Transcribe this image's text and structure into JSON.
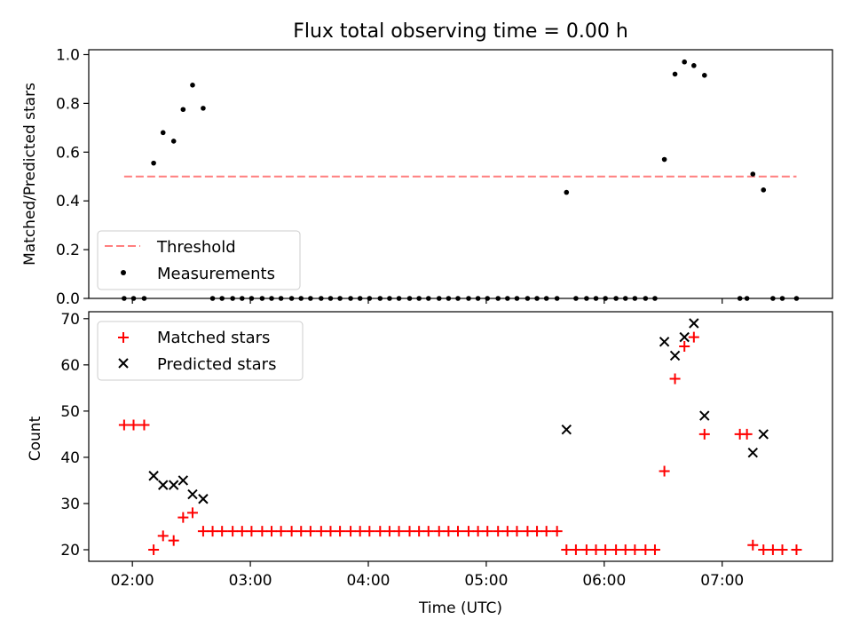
{
  "chart_data": {
    "title": "Flux total observing time = 0.00 h",
    "xlabel": "Time (UTC)",
    "x_tick_labels": [
      "02:00",
      "03:00",
      "04:00",
      "05:00",
      "06:00",
      "07:00"
    ],
    "x_tick_hours": [
      2,
      3,
      4,
      5,
      6,
      7
    ],
    "xlim": [
      1.63,
      7.935
    ],
    "colors": {
      "threshold": "#ff7f7f",
      "measurements": "#000000",
      "matched": "#ff0000",
      "predicted": "#000000"
    },
    "panels": [
      {
        "type": "scatter",
        "ylabel": "Matched/Predicted stars",
        "ylim": [
          0,
          1.02
        ],
        "y_tick_values": [
          0.0,
          0.2,
          0.4,
          0.6,
          0.8,
          1.0
        ],
        "y_tick_labels": [
          "0.0",
          "0.2",
          "0.4",
          "0.6",
          "0.8",
          "1.0"
        ],
        "legend": {
          "position": "lower left",
          "entries": [
            {
              "label": "Threshold"
            },
            {
              "label": "Measurements"
            }
          ]
        },
        "threshold": {
          "name": "Threshold",
          "value": 0.5,
          "x_range": [
            1.93,
            7.63
          ]
        },
        "measurements": {
          "name": "Measurements",
          "x": [
            1.93,
            2.01,
            2.1,
            2.18,
            2.26,
            2.35,
            2.43,
            2.51,
            2.6,
            2.68,
            2.76,
            2.85,
            2.93,
            3.01,
            3.1,
            3.18,
            3.26,
            3.35,
            3.43,
            3.51,
            3.6,
            3.68,
            3.76,
            3.85,
            3.93,
            4.01,
            4.1,
            4.18,
            4.26,
            4.35,
            4.43,
            4.51,
            4.6,
            4.68,
            4.76,
            4.85,
            4.93,
            5.01,
            5.1,
            5.18,
            5.26,
            5.35,
            5.43,
            5.51,
            5.6,
            5.68,
            5.76,
            5.85,
            5.93,
            6.01,
            6.1,
            6.18,
            6.26,
            6.35,
            6.43,
            6.51,
            6.6,
            6.68,
            6.76,
            6.85,
            7.15,
            7.21,
            7.26,
            7.35,
            7.43,
            7.51,
            7.63
          ],
          "y": [
            0,
            0,
            0,
            0.555,
            0.68,
            0.645,
            0.775,
            0.875,
            0.78,
            0,
            0,
            0,
            0,
            0,
            0,
            0,
            0,
            0,
            0,
            0,
            0,
            0,
            0,
            0,
            0,
            0,
            0,
            0,
            0,
            0,
            0,
            0,
            0,
            0,
            0,
            0,
            0,
            0,
            0,
            0,
            0,
            0,
            0,
            0,
            0,
            0.435,
            0,
            0,
            0,
            0,
            0,
            0,
            0,
            0,
            0,
            0.57,
            0.92,
            0.97,
            0.955,
            0.915,
            0,
            0,
            0.51,
            0.445,
            0,
            0,
            0
          ]
        }
      },
      {
        "type": "scatter",
        "ylabel": "Count",
        "ylim": [
          17.5,
          71.5
        ],
        "y_tick_values": [
          20,
          30,
          40,
          50,
          60,
          70
        ],
        "y_tick_labels": [
          "20",
          "30",
          "40",
          "50",
          "60",
          "70"
        ],
        "legend": {
          "position": "upper left",
          "entries": [
            {
              "label": "Matched stars"
            },
            {
              "label": "Predicted stars"
            }
          ]
        },
        "series": [
          {
            "name": "Matched stars",
            "marker": "+",
            "x": [
              1.93,
              2.01,
              2.1,
              2.18,
              2.26,
              2.35,
              2.43,
              2.51,
              2.6,
              2.68,
              2.76,
              2.85,
              2.93,
              3.01,
              3.1,
              3.18,
              3.26,
              3.35,
              3.43,
              3.51,
              3.6,
              3.68,
              3.76,
              3.85,
              3.93,
              4.01,
              4.1,
              4.18,
              4.26,
              4.35,
              4.43,
              4.51,
              4.6,
              4.68,
              4.76,
              4.85,
              4.93,
              5.01,
              5.1,
              5.18,
              5.26,
              5.35,
              5.43,
              5.51,
              5.6,
              5.68,
              5.76,
              5.85,
              5.93,
              6.01,
              6.1,
              6.18,
              6.26,
              6.35,
              6.43,
              6.51,
              6.6,
              6.68,
              6.76,
              6.85,
              7.15,
              7.21,
              7.26,
              7.35,
              7.43,
              7.51,
              7.63
            ],
            "y": [
              47,
              47,
              47,
              20,
              23,
              22,
              27,
              28,
              24,
              24,
              24,
              24,
              24,
              24,
              24,
              24,
              24,
              24,
              24,
              24,
              24,
              24,
              24,
              24,
              24,
              24,
              24,
              24,
              24,
              24,
              24,
              24,
              24,
              24,
              24,
              24,
              24,
              24,
              24,
              24,
              24,
              24,
              24,
              24,
              24,
              20,
              20,
              20,
              20,
              20,
              20,
              20,
              20,
              20,
              20,
              37,
              57,
              64,
              66,
              45,
              45,
              45,
              21,
              20,
              20,
              20,
              20
            ]
          },
          {
            "name": "Predicted stars",
            "marker": "x",
            "x": [
              2.18,
              2.26,
              2.35,
              2.43,
              2.51,
              2.6,
              5.68,
              6.51,
              6.6,
              6.68,
              6.76,
              6.85,
              7.26,
              7.35
            ],
            "y": [
              36,
              34,
              34,
              35,
              32,
              31,
              46,
              65,
              62,
              66,
              69,
              49,
              41,
              45
            ]
          }
        ]
      }
    ]
  }
}
